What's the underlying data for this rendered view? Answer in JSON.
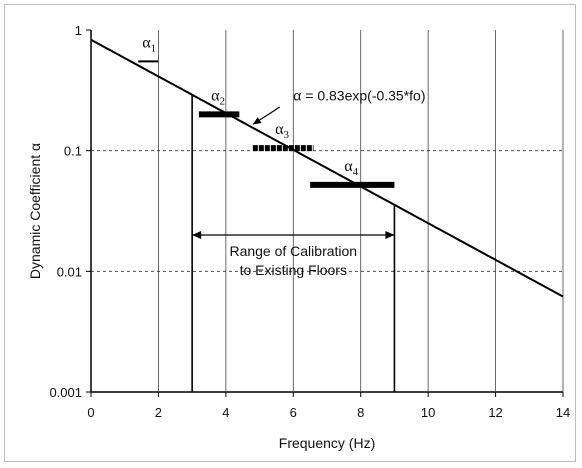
{
  "chart_data": {
    "type": "line",
    "title": "",
    "xlabel": "Frequency (Hz)",
    "ylabel": "Dynamic Coefficient α",
    "xlim": [
      0,
      14
    ],
    "ylim": [
      0.001,
      1
    ],
    "yscale": "log",
    "x_ticks": [
      "0",
      "2",
      "4",
      "6",
      "8",
      "10",
      "12",
      "14"
    ],
    "y_ticks": [
      "0.001",
      "0.01",
      "0.1",
      "1"
    ],
    "vertical_grid_x": [
      2,
      4,
      6,
      8,
      10,
      12,
      14
    ],
    "dashed_grid_y": [
      0.1,
      0.01
    ],
    "curve": {
      "label": "α = 0.83exp(-0.35*fo)",
      "coef": 0.83,
      "rate": -0.35,
      "x_range": [
        0,
        14
      ]
    },
    "steps": [
      {
        "label": "α",
        "sub": "1",
        "x": [
          1.4,
          2.0
        ],
        "y": 0.55
      },
      {
        "label": "α",
        "sub": "2",
        "x": [
          3.2,
          4.4
        ],
        "y": 0.2
      },
      {
        "label": "α",
        "sub": "3",
        "x": [
          4.8,
          6.6
        ],
        "y": 0.105
      },
      {
        "label": "α",
        "sub": "4",
        "x": [
          6.5,
          9.0
        ],
        "y": 0.052
      }
    ],
    "calibration_lines_x": [
      3,
      9
    ],
    "range_annotation": {
      "line1": "Range of Calibration",
      "line2": "to Existing Floors",
      "x": [
        3,
        9
      ],
      "y": 0.02
    }
  }
}
